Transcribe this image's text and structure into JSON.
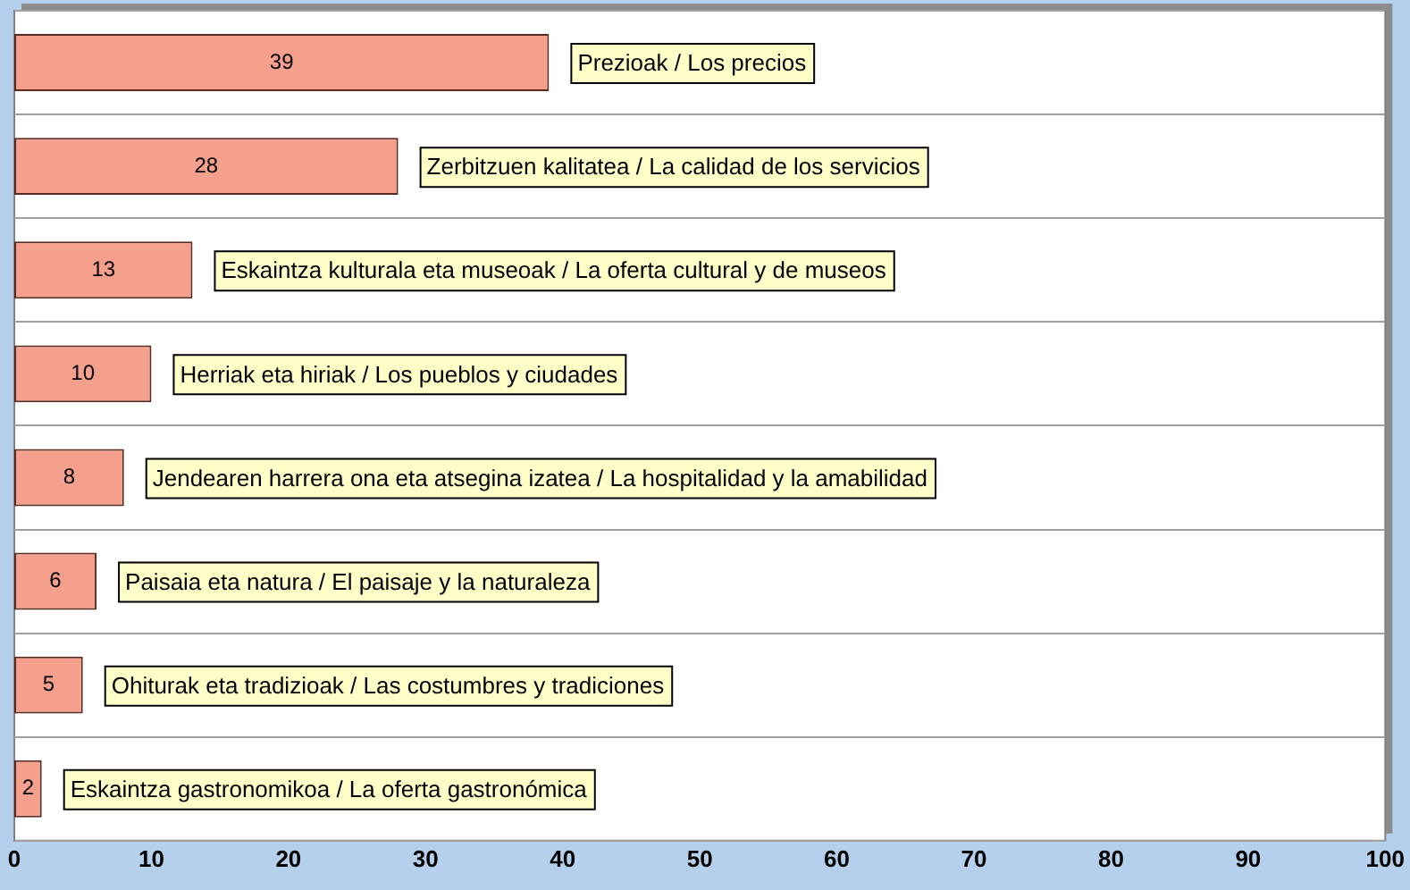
{
  "chart_data": {
    "type": "bar",
    "orientation": "horizontal",
    "categories": [
      "Prezioak / Los precios",
      "Zerbitzuen kalitatea / La calidad de los servicios",
      "Eskaintza kulturala eta museoak / La oferta cultural y de museos",
      "Herriak eta hiriak / Los pueblos y ciudades",
      "Jendearen harrera ona eta atsegina izatea / La hospitalidad y la amabilidad",
      "Paisaia eta natura / El paisaje y la naturaleza",
      "Ohiturak eta tradizioak / Las costumbres y tradiciones",
      "Eskaintza gastronomikoa / La oferta gastronómica"
    ],
    "values": [
      39,
      28,
      13,
      10,
      8,
      6,
      5,
      2
    ],
    "color": "#f4a08c",
    "xlim": [
      0,
      100
    ],
    "xticks": [
      0,
      10,
      20,
      30,
      40,
      50,
      60,
      70,
      80,
      90,
      100
    ],
    "grid": "y",
    "tick_labels": "x",
    "data_labels": true,
    "legend": false
  }
}
